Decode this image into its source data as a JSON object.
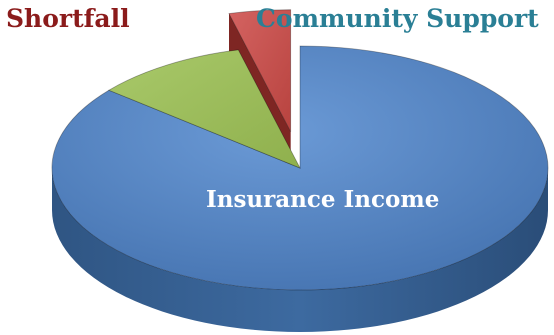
{
  "chart_data": {
    "type": "pie",
    "title": "",
    "slices": [
      {
        "label": "Insurance Income",
        "value": 86,
        "color": "#4f81bd",
        "side_color": "#36618f",
        "label_color": "#ffffff"
      },
      {
        "label": "Community Support",
        "value": 10,
        "color": "#9bbb59",
        "side_color": "#6f8c36",
        "label_color": "#2a7f95"
      },
      {
        "label": "Shortfall",
        "value": 4,
        "color": "#c0504d",
        "side_color": "#7e2623",
        "label_color": "#8b1b1b"
      }
    ],
    "exploded": [
      "Shortfall"
    ],
    "legend": "none",
    "style": "3d"
  }
}
